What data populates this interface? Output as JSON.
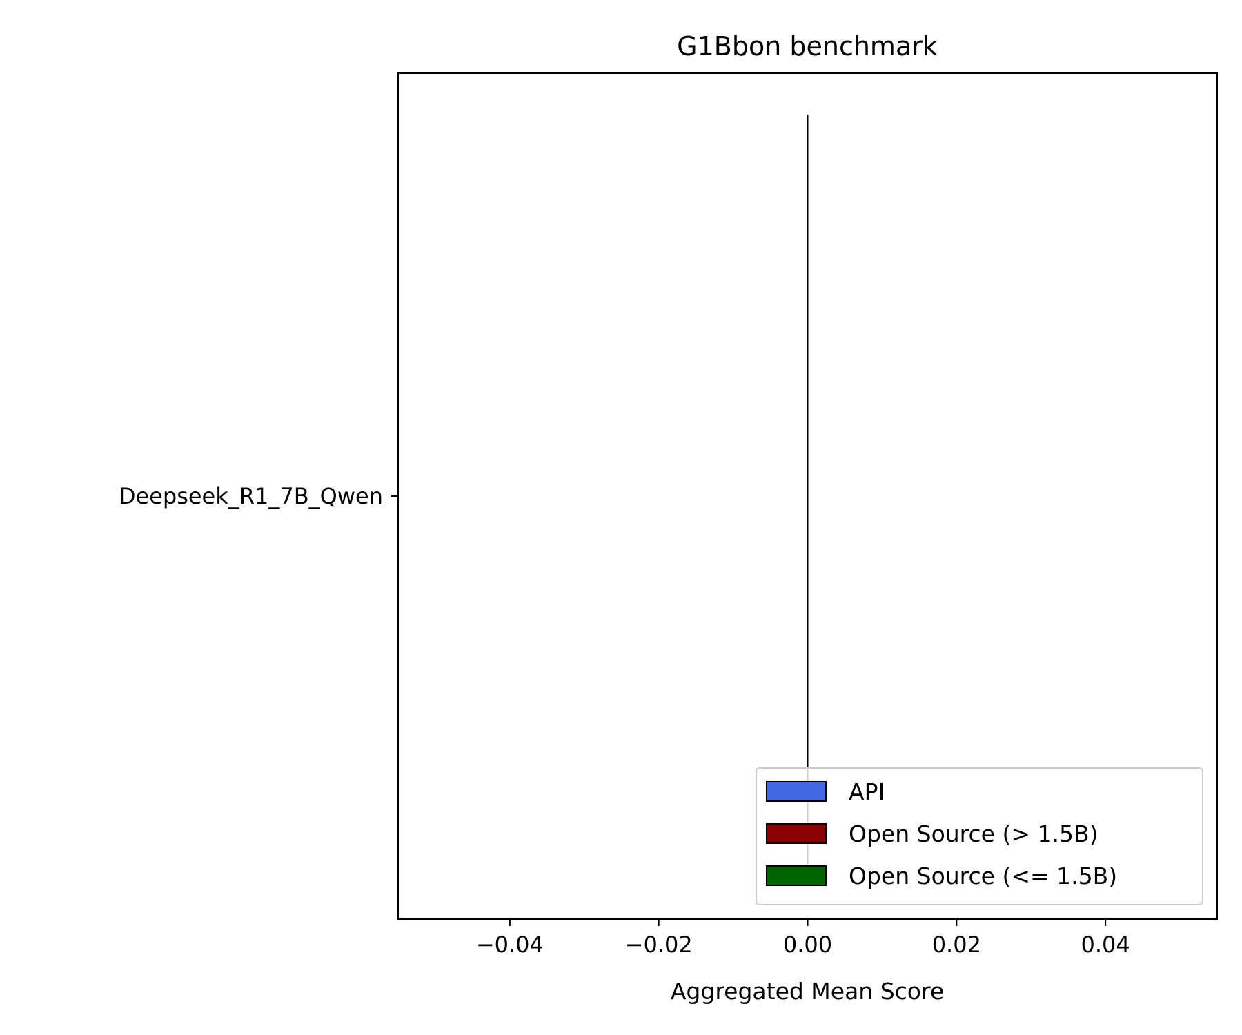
{
  "chart_data": {
    "type": "bar",
    "orientation": "horizontal",
    "title": "G1Bbon benchmark",
    "xlabel": "Aggregated Mean Score",
    "ylabel": "",
    "xlim": [
      -0.055,
      0.055
    ],
    "xticks": [
      -0.04,
      -0.02,
      0.0,
      0.02,
      0.04
    ],
    "xtick_labels": [
      "−0.04",
      "−0.02",
      "0.00",
      "0.02",
      "0.04"
    ],
    "categories": [
      "Deepseek_R1_7B_Qwen"
    ],
    "values": [
      0.0
    ],
    "bar_category": [
      "Open Source (> 1.5B)"
    ],
    "grid": false,
    "legend_position": "lower-right",
    "legend": [
      {
        "label": "API",
        "color": "#4169e1"
      },
      {
        "label": "Open Source (> 1.5B)",
        "color": "#8b0000"
      },
      {
        "label": "Open Source (<= 1.5B)",
        "color": "#006400"
      }
    ]
  }
}
